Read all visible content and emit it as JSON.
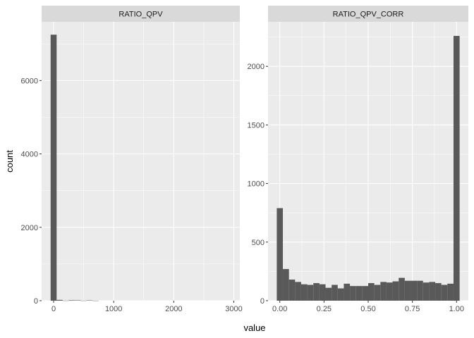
{
  "chart_data": [
    {
      "type": "bar",
      "facet": "RATIO_QPV",
      "xlabel": "value",
      "ylabel": "count",
      "xlim": [
        -200,
        3100
      ],
      "ylim": [
        0,
        7600
      ],
      "xticks": [
        0,
        1000,
        2000,
        3000
      ],
      "yticks": [
        0,
        2000,
        4000,
        6000
      ],
      "bin_width": 100,
      "grid": true,
      "bins": [
        {
          "x": 0,
          "count": 7250
        },
        {
          "x": 100,
          "count": 22
        },
        {
          "x": 200,
          "count": 3
        },
        {
          "x": 300,
          "count": 12
        },
        {
          "x": 400,
          "count": 10
        },
        {
          "x": 500,
          "count": 2
        },
        {
          "x": 600,
          "count": 9
        },
        {
          "x": 700,
          "count": 1
        }
      ]
    },
    {
      "type": "bar",
      "facet": "RATIO_QPV_CORR",
      "xlabel": "value",
      "ylabel": "count",
      "xlim": [
        -0.0667,
        1.0667
      ],
      "ylim": [
        0,
        2380
      ],
      "xticks": [
        0.0,
        0.25,
        0.5,
        0.75,
        1.0
      ],
      "xtick_labels": [
        "0.00",
        "0.25",
        "0.50",
        "0.75",
        "1.00"
      ],
      "yticks": [
        0,
        500,
        1000,
        1500,
        2000
      ],
      "bin_width": 0.03448,
      "grid": true,
      "bins": [
        {
          "x": 0.0,
          "count": 790
        },
        {
          "x": 0.0345,
          "count": 270
        },
        {
          "x": 0.069,
          "count": 180
        },
        {
          "x": 0.1034,
          "count": 160
        },
        {
          "x": 0.1379,
          "count": 140
        },
        {
          "x": 0.1724,
          "count": 135
        },
        {
          "x": 0.2069,
          "count": 150
        },
        {
          "x": 0.2414,
          "count": 140
        },
        {
          "x": 0.2759,
          "count": 110
        },
        {
          "x": 0.3103,
          "count": 135
        },
        {
          "x": 0.3448,
          "count": 105
        },
        {
          "x": 0.3793,
          "count": 145
        },
        {
          "x": 0.4138,
          "count": 125
        },
        {
          "x": 0.4483,
          "count": 125
        },
        {
          "x": 0.4828,
          "count": 125
        },
        {
          "x": 0.5172,
          "count": 150
        },
        {
          "x": 0.5517,
          "count": 135
        },
        {
          "x": 0.5862,
          "count": 160
        },
        {
          "x": 0.6207,
          "count": 155
        },
        {
          "x": 0.6552,
          "count": 165
        },
        {
          "x": 0.6897,
          "count": 195
        },
        {
          "x": 0.7241,
          "count": 170
        },
        {
          "x": 0.7586,
          "count": 170
        },
        {
          "x": 0.7931,
          "count": 170
        },
        {
          "x": 0.8276,
          "count": 155
        },
        {
          "x": 0.8621,
          "count": 160
        },
        {
          "x": 0.8966,
          "count": 150
        },
        {
          "x": 0.931,
          "count": 135
        },
        {
          "x": 0.9655,
          "count": 145
        },
        {
          "x": 1.0,
          "count": 2260
        }
      ]
    }
  ],
  "colors": {
    "panel_bg": "#ebebeb",
    "strip_bg": "#d9d9d9",
    "grid_major": "#ffffff",
    "bar_fill": "#595959",
    "tick_color": "#333333"
  }
}
